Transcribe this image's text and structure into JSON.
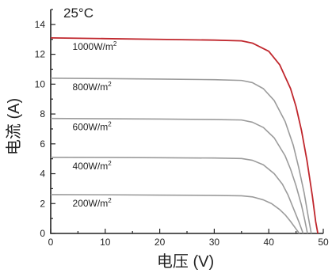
{
  "chart_data": {
    "type": "line",
    "title": "25°C",
    "xlabel": "电压 (V)",
    "ylabel": "电流 (A)",
    "xlim": [
      0,
      50
    ],
    "ylim": [
      0,
      15
    ],
    "xticks": [
      0,
      10,
      20,
      30,
      40,
      50
    ],
    "yticks": [
      0,
      2,
      4,
      6,
      8,
      10,
      12,
      14
    ],
    "grid": false,
    "series": [
      {
        "name": "1000W/m²",
        "color": "#c0272d",
        "x": [
          0,
          10,
          20,
          30,
          35,
          37,
          40,
          42,
          44,
          45,
          46,
          47,
          48,
          48.6,
          49
        ],
        "y": [
          13.1,
          13.05,
          13.0,
          12.95,
          12.9,
          12.75,
          12.2,
          11.3,
          9.7,
          8.5,
          6.9,
          4.9,
          2.5,
          0.8,
          0
        ]
      },
      {
        "name": "800W/m²",
        "color": "#9b9b9b",
        "x": [
          0,
          10,
          20,
          30,
          35,
          37,
          39,
          41,
          43,
          44.5,
          45.5,
          46.5,
          47.3,
          47.8
        ],
        "y": [
          10.4,
          10.37,
          10.34,
          10.3,
          10.25,
          10.1,
          9.7,
          8.9,
          7.5,
          5.9,
          4.4,
          2.7,
          1.0,
          0
        ]
      },
      {
        "name": "600W/m²",
        "color": "#9b9b9b",
        "x": [
          0,
          10,
          20,
          30,
          35,
          37,
          39,
          41,
          43,
          44,
          45,
          46,
          46.6,
          47.1
        ],
        "y": [
          7.7,
          7.68,
          7.66,
          7.63,
          7.6,
          7.45,
          7.1,
          6.4,
          5.2,
          4.3,
          3.2,
          1.9,
          0.9,
          0
        ]
      },
      {
        "name": "400W/m²",
        "color": "#9b9b9b",
        "x": [
          0,
          10,
          20,
          30,
          35,
          37,
          39,
          41,
          42.5,
          43.5,
          44.5,
          45.5,
          46.3
        ],
        "y": [
          5.1,
          5.09,
          5.07,
          5.05,
          5.02,
          4.9,
          4.6,
          4.0,
          3.3,
          2.6,
          1.7,
          0.8,
          0
        ]
      },
      {
        "name": "200W/m²",
        "color": "#9b9b9b",
        "x": [
          0,
          10,
          20,
          30,
          35,
          37,
          39,
          40.5,
          42,
          43,
          44,
          45,
          45.6
        ],
        "y": [
          2.6,
          2.59,
          2.57,
          2.55,
          2.52,
          2.45,
          2.25,
          2.0,
          1.6,
          1.25,
          0.8,
          0.3,
          0
        ]
      }
    ],
    "curve_labels": [
      {
        "base": "1000W/m",
        "sup": "2"
      },
      {
        "base": "800W/m",
        "sup": "2"
      },
      {
        "base": "600W/m",
        "sup": "2"
      },
      {
        "base": "400W/m",
        "sup": "2"
      },
      {
        "base": "200W/m",
        "sup": "2"
      }
    ]
  }
}
